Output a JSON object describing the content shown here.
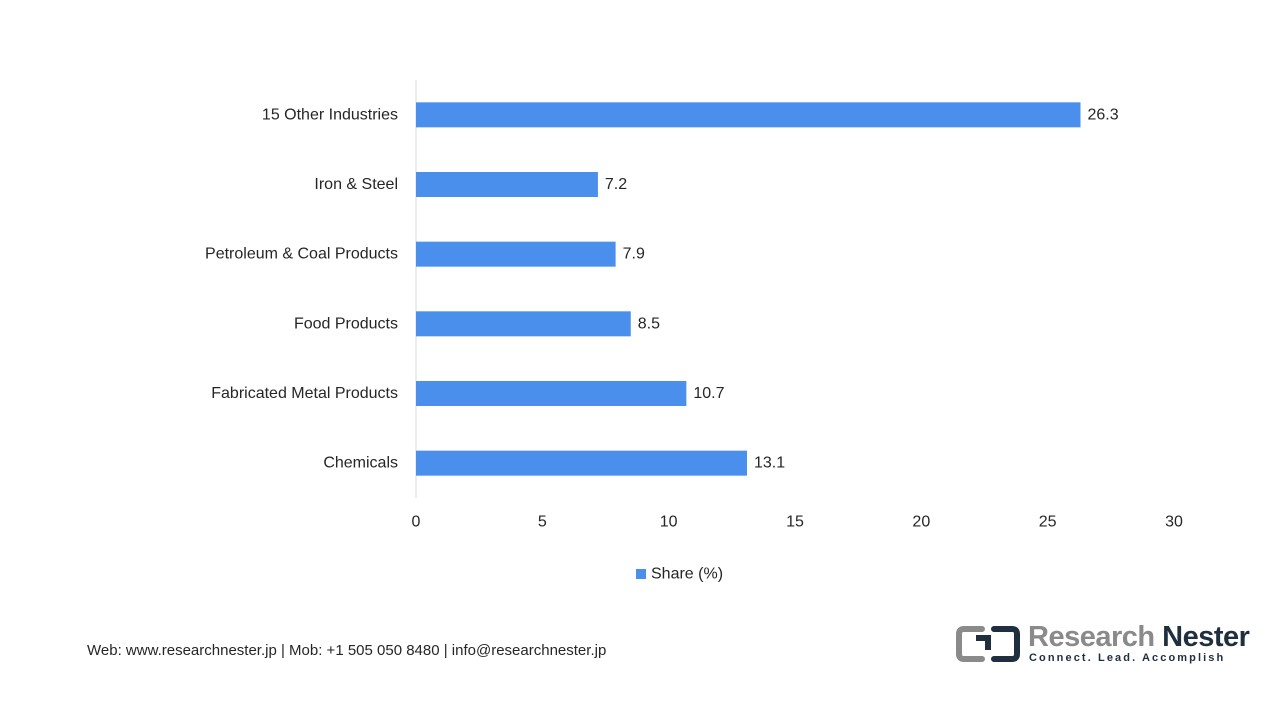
{
  "chart_data": {
    "type": "bar",
    "orientation": "horizontal",
    "categories": [
      "15 Other Industries",
      "Iron & Steel",
      "Petroleum & Coal Products",
      "Food Products",
      "Fabricated Metal Products",
      "Chemicals"
    ],
    "series": [
      {
        "name": "Share (%)",
        "values": [
          26.3,
          7.2,
          7.9,
          8.5,
          10.7,
          13.1
        ],
        "color": "#4a8fec"
      }
    ],
    "data_labels": [
      "26.3",
      "7.2",
      "7.9",
      "8.5",
      "10.7",
      "13.1"
    ],
    "title": "",
    "xlabel": "",
    "ylabel": "",
    "xlim": [
      0,
      30
    ],
    "x_ticks": [
      0,
      5,
      10,
      15,
      20,
      25,
      30
    ],
    "grid": false,
    "legend_position": "bottom"
  },
  "footer": {
    "contact": "Web: www.researchnester.jp  | Mob: +1 505 050 8480 | info@researchnester.jp"
  },
  "logo": {
    "name_part1": "Research",
    "name_part2": "Nester",
    "tagline": "Connect. Lead. Accomplish"
  }
}
